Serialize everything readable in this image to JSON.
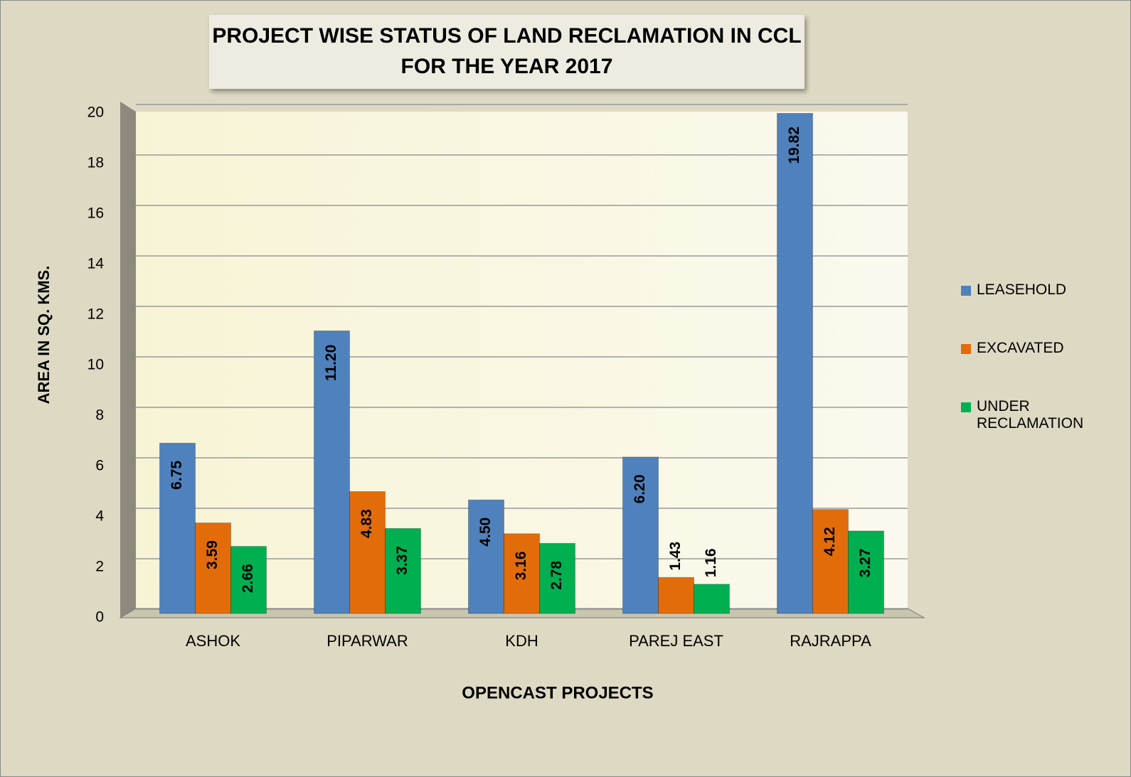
{
  "chart_data": {
    "type": "bar",
    "title": [
      "PROJECT WISE STATUS OF LAND RECLAMATION IN CCL",
      "FOR THE YEAR 2017"
    ],
    "x_label": "OPENCAST PROJECTS",
    "y_label": "AREA IN SQ. KMS.",
    "categories": [
      "ASHOK",
      "PIPARWAR",
      "KDH",
      "PAREJ EAST",
      "RAJRAPPA"
    ],
    "series": [
      {
        "name": "LEASEHOLD",
        "color": "#4f81bd",
        "values": [
          6.75,
          11.2,
          4.5,
          6.2,
          19.82
        ],
        "value_labels": [
          "6.75",
          "11.20",
          "4.50",
          "6.20",
          "19.82"
        ]
      },
      {
        "name": "EXCAVATED",
        "color": "#e36c0a",
        "values": [
          3.59,
          4.83,
          3.16,
          1.43,
          4.12
        ],
        "value_labels": [
          "3.59",
          "4.83",
          "3.16",
          "1.43",
          "4.12"
        ]
      },
      {
        "name": "UNDER RECLAMATION",
        "color": "#00b050",
        "values": [
          2.66,
          3.37,
          2.78,
          1.16,
          3.27
        ],
        "value_labels": [
          "2.66",
          "3.37",
          "2.78",
          "1.16",
          "3.27"
        ]
      }
    ],
    "ylim": [
      0,
      20
    ],
    "yticks": [
      0,
      2,
      4,
      6,
      8,
      10,
      12,
      14,
      16,
      18,
      20
    ],
    "grid": true,
    "legend": "right"
  }
}
